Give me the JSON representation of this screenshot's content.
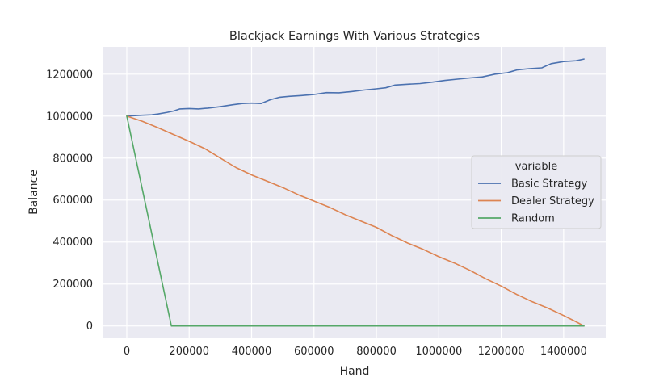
{
  "chart_data": {
    "type": "line",
    "title": "Blackjack Earnings With Various Strategies",
    "xlabel": "Hand",
    "ylabel": "Balance",
    "xlim": [
      -75000,
      1535000
    ],
    "ylim": [
      -55000,
      1330000
    ],
    "xticks": [
      0,
      200000,
      400000,
      600000,
      800000,
      1000000,
      1200000,
      1400000
    ],
    "yticks": [
      0,
      200000,
      400000,
      600000,
      800000,
      1000000,
      1200000
    ],
    "grid": true,
    "background": "#eaeaf2",
    "legend": {
      "title": "variable",
      "placement": "center-right"
    },
    "series": [
      {
        "name": "Basic Strategy",
        "color": "#4c72b0",
        "points": [
          [
            0,
            1000000
          ],
          [
            20000,
            1002000
          ],
          [
            50000,
            1004000
          ],
          [
            80000,
            1006000
          ],
          [
            100000,
            1010000
          ],
          [
            130000,
            1018000
          ],
          [
            150000,
            1024000
          ],
          [
            170000,
            1034000
          ],
          [
            200000,
            1036000
          ],
          [
            230000,
            1034000
          ],
          [
            260000,
            1038000
          ],
          [
            300000,
            1045000
          ],
          [
            340000,
            1054000
          ],
          [
            370000,
            1060000
          ],
          [
            400000,
            1062000
          ],
          [
            430000,
            1060000
          ],
          [
            460000,
            1078000
          ],
          [
            490000,
            1090000
          ],
          [
            520000,
            1094000
          ],
          [
            560000,
            1098000
          ],
          [
            600000,
            1103000
          ],
          [
            640000,
            1112000
          ],
          [
            680000,
            1111000
          ],
          [
            720000,
            1117000
          ],
          [
            760000,
            1124000
          ],
          [
            800000,
            1130000
          ],
          [
            830000,
            1135000
          ],
          [
            860000,
            1148000
          ],
          [
            900000,
            1152000
          ],
          [
            940000,
            1155000
          ],
          [
            980000,
            1162000
          ],
          [
            1020000,
            1170000
          ],
          [
            1060000,
            1176000
          ],
          [
            1100000,
            1182000
          ],
          [
            1140000,
            1187000
          ],
          [
            1180000,
            1200000
          ],
          [
            1220000,
            1207000
          ],
          [
            1250000,
            1220000
          ],
          [
            1290000,
            1226000
          ],
          [
            1330000,
            1230000
          ],
          [
            1360000,
            1250000
          ],
          [
            1400000,
            1260000
          ],
          [
            1440000,
            1264000
          ],
          [
            1465000,
            1272000
          ]
        ]
      },
      {
        "name": "Dealer Strategy",
        "color": "#dd8452",
        "points": [
          [
            0,
            1000000
          ],
          [
            50000,
            975000
          ],
          [
            100000,
            945000
          ],
          [
            150000,
            912000
          ],
          [
            200000,
            880000
          ],
          [
            250000,
            845000
          ],
          [
            300000,
            800000
          ],
          [
            350000,
            755000
          ],
          [
            400000,
            720000
          ],
          [
            450000,
            690000
          ],
          [
            500000,
            660000
          ],
          [
            550000,
            625000
          ],
          [
            600000,
            595000
          ],
          [
            650000,
            565000
          ],
          [
            700000,
            530000
          ],
          [
            750000,
            500000
          ],
          [
            800000,
            470000
          ],
          [
            850000,
            430000
          ],
          [
            900000,
            395000
          ],
          [
            950000,
            365000
          ],
          [
            1000000,
            330000
          ],
          [
            1050000,
            300000
          ],
          [
            1100000,
            265000
          ],
          [
            1150000,
            225000
          ],
          [
            1200000,
            190000
          ],
          [
            1250000,
            150000
          ],
          [
            1300000,
            115000
          ],
          [
            1350000,
            85000
          ],
          [
            1400000,
            50000
          ],
          [
            1440000,
            20000
          ],
          [
            1465000,
            0
          ]
        ]
      },
      {
        "name": "Random",
        "color": "#55a868",
        "points": [
          [
            0,
            1000000
          ],
          [
            143000,
            0
          ],
          [
            1465000,
            0
          ]
        ]
      }
    ]
  }
}
